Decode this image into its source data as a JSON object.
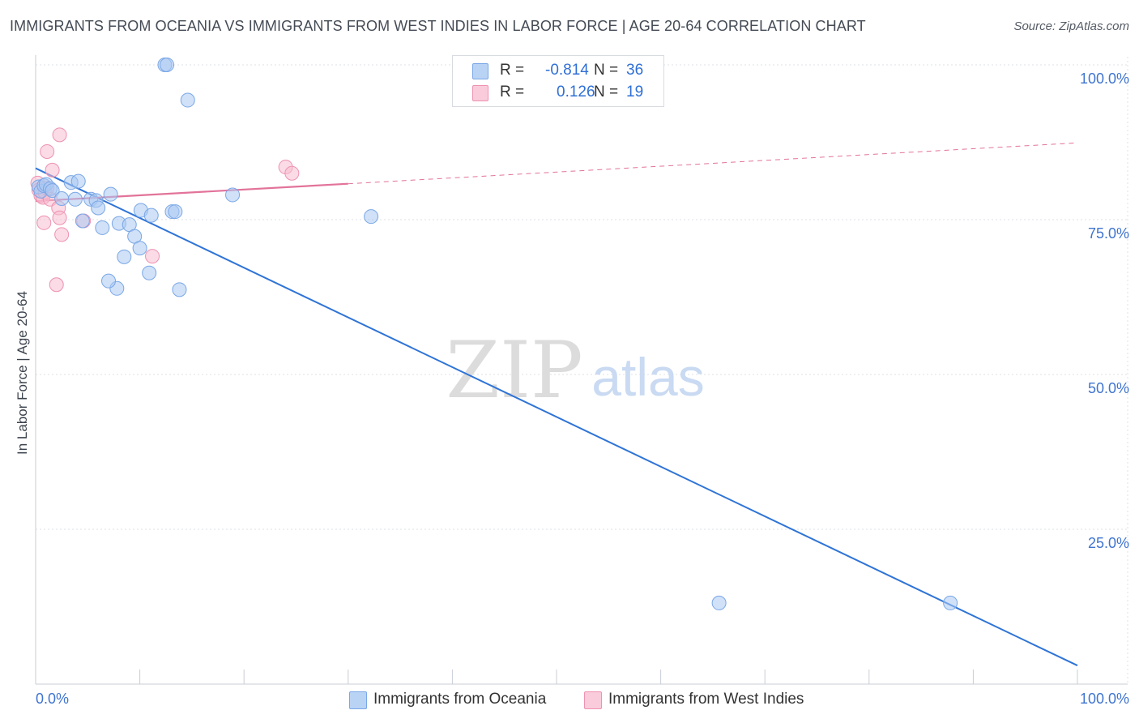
{
  "title": "IMMIGRANTS FROM OCEANIA VS IMMIGRANTS FROM WEST INDIES IN LABOR FORCE | AGE 20-64 CORRELATION CHART",
  "source": "Source: ZipAtlas.com",
  "watermark": {
    "zip": "ZIP",
    "atlas": "atlas"
  },
  "legend": {
    "row1": {
      "r_label": "R =",
      "r_value": "-0.814",
      "n_label": "N =",
      "n_value": "36"
    },
    "row2": {
      "r_label": "R =",
      "r_value": "0.126",
      "n_label": "N =",
      "n_value": "19"
    }
  },
  "colors": {
    "oceania_fill": "#a9c8f2",
    "oceania_stroke": "#7aa7e6",
    "oceania_line": "#2f74d6",
    "westindies_fill": "#f7bed0",
    "westindies_stroke": "#ee92b2",
    "westindies_line": "#e2739a",
    "grid": "#dde1e6",
    "axis_text": "#3f74d0"
  },
  "chart_data": {
    "type": "scatter",
    "title": "IMMIGRANTS FROM OCEANIA VS IMMIGRANTS FROM WEST INDIES IN LABOR FORCE | AGE 20-64 CORRELATION CHART",
    "xlabel": "",
    "ylabel": "In Labor Force | Age 20-64",
    "xlim": [
      0,
      100
    ],
    "ylim": [
      0,
      100
    ],
    "x_tick_labels": [
      "0.0%",
      "100.0%"
    ],
    "y_tick_labels": [
      "100.0%",
      "75.0%",
      "50.0%",
      "25.0%"
    ],
    "y_tick_values": [
      100,
      75,
      50,
      25
    ],
    "series": [
      {
        "name": "Immigrants from Oceania",
        "r": -0.814,
        "n": 36,
        "points": [
          [
            0.3,
            80.3
          ],
          [
            0.5,
            79.6
          ],
          [
            0.8,
            80.5
          ],
          [
            1.0,
            80.7
          ],
          [
            1.4,
            80.0
          ],
          [
            1.6,
            79.7
          ],
          [
            2.5,
            78.4
          ],
          [
            3.4,
            81.0
          ],
          [
            4.1,
            81.2
          ],
          [
            3.8,
            78.3
          ],
          [
            5.3,
            78.3
          ],
          [
            5.8,
            78.1
          ],
          [
            6.0,
            76.9
          ],
          [
            7.2,
            79.1
          ],
          [
            4.5,
            74.8
          ],
          [
            6.4,
            73.7
          ],
          [
            8.0,
            74.4
          ],
          [
            9.0,
            74.2
          ],
          [
            10.1,
            76.5
          ],
          [
            11.1,
            75.7
          ],
          [
            13.1,
            76.3
          ],
          [
            13.4,
            76.3
          ],
          [
            9.5,
            72.3
          ],
          [
            8.5,
            69.0
          ],
          [
            10.0,
            70.4
          ],
          [
            10.9,
            66.4
          ],
          [
            7.8,
            63.9
          ],
          [
            7.0,
            65.1
          ],
          [
            13.8,
            63.7
          ],
          [
            12.4,
            100.0
          ],
          [
            12.6,
            100.0
          ],
          [
            14.6,
            94.3
          ],
          [
            18.9,
            79.0
          ],
          [
            32.2,
            75.5
          ],
          [
            65.6,
            13.1
          ],
          [
            87.8,
            13.1
          ]
        ],
        "trend": {
          "x": [
            0,
            100
          ],
          "y": [
            83.3,
            3.0
          ]
        }
      },
      {
        "name": "Immigrants from West Indies",
        "r": 0.126,
        "n": 19,
        "points": [
          [
            0.2,
            80.9
          ],
          [
            0.3,
            79.8
          ],
          [
            0.5,
            78.9
          ],
          [
            0.7,
            78.6
          ],
          [
            0.9,
            79.4
          ],
          [
            1.1,
            80.1
          ],
          [
            1.4,
            78.3
          ],
          [
            2.2,
            76.9
          ],
          [
            1.6,
            83.0
          ],
          [
            2.5,
            72.6
          ],
          [
            2.3,
            75.3
          ],
          [
            4.6,
            74.8
          ],
          [
            1.1,
            86.0
          ],
          [
            2.3,
            88.7
          ],
          [
            0.8,
            74.5
          ],
          [
            2.0,
            64.5
          ],
          [
            11.2,
            69.1
          ],
          [
            24.0,
            83.5
          ],
          [
            24.6,
            82.5
          ]
        ],
        "trend": {
          "x": [
            0,
            30
          ],
          "y": [
            78.0,
            80.8
          ]
        },
        "trend_extended": {
          "x": [
            30,
            100
          ],
          "y": [
            80.8,
            87.4
          ]
        }
      }
    ]
  },
  "bottom_legend": {
    "oceania": "Immigrants from Oceania",
    "westindies": "Immigrants from West Indies"
  }
}
